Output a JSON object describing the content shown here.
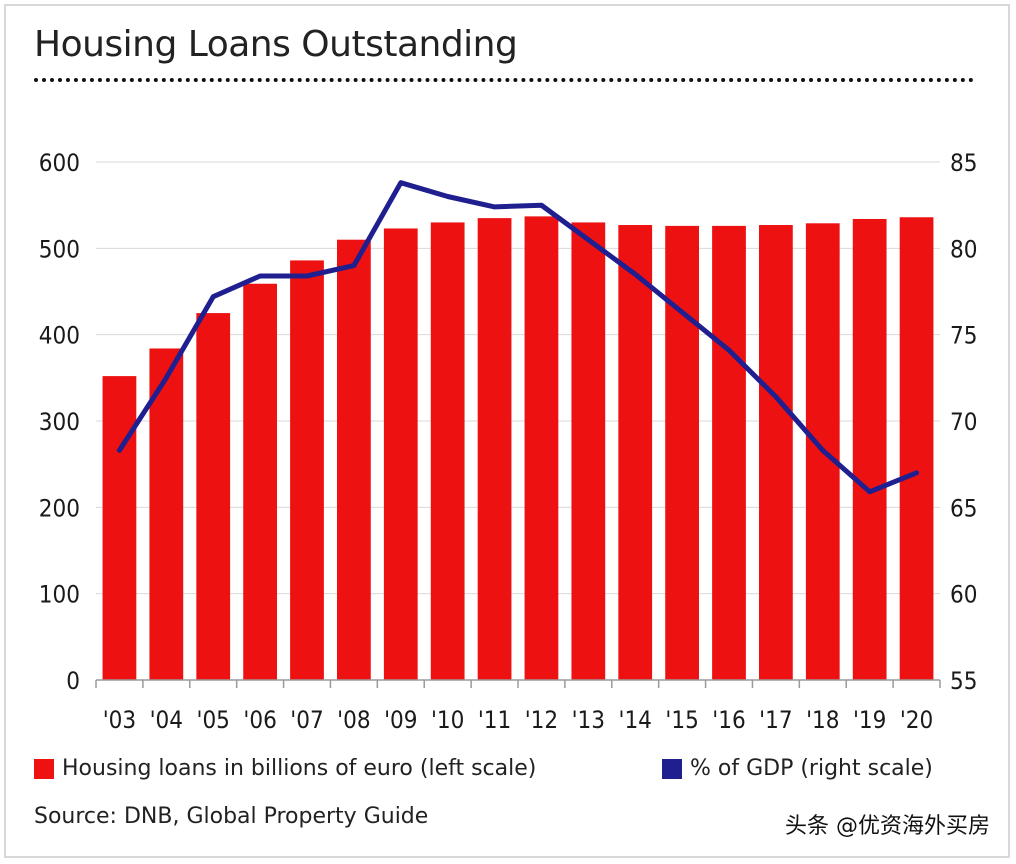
{
  "chart_data": {
    "type": "bar",
    "title": "Housing Loans Outstanding",
    "categories": [
      "'03",
      "'04",
      "'05",
      "'06",
      "'07",
      "'08",
      "'09",
      "'10",
      "'11",
      "'12",
      "'13",
      "'14",
      "'15",
      "'16",
      "'17",
      "'18",
      "'19",
      "'20"
    ],
    "series": [
      {
        "name": "Housing loans in billions of euro (left scale)",
        "type": "bar",
        "axis": "left",
        "color": "#ee1111",
        "values": [
          352,
          384,
          425,
          459,
          486,
          510,
          523,
          530,
          535,
          537,
          530,
          527,
          526,
          526,
          527,
          529,
          534,
          536
        ]
      },
      {
        "name": "% of GDP (right scale)",
        "type": "line",
        "axis": "right",
        "color": "#1f1f8f",
        "values": [
          68.3,
          72.5,
          77.2,
          78.4,
          78.4,
          79.0,
          83.8,
          83.0,
          82.4,
          82.5,
          80.5,
          78.5,
          76.3,
          74.1,
          71.4,
          68.3,
          65.9,
          67.0
        ]
      }
    ],
    "y_left": {
      "ylim": [
        0,
        600
      ],
      "ticks": [
        "0",
        "100",
        "200",
        "300",
        "400",
        "500",
        "600"
      ]
    },
    "y_right": {
      "ylim": [
        55,
        85
      ],
      "ticks": [
        "55",
        "60",
        "65",
        "70",
        "75",
        "80",
        "85"
      ]
    },
    "grid": true,
    "legend_position": "bottom"
  },
  "legend": {
    "bars_label": "Housing loans in billions of euro (left scale)",
    "line_label": "% of GDP (right scale)"
  },
  "source": "Source: DNB, Global Property Guide",
  "watermark": "头条 @优资海外买房",
  "colors": {
    "bar": "#ee1111",
    "line": "#1f1f8f",
    "grid": "#d9d9d9"
  }
}
